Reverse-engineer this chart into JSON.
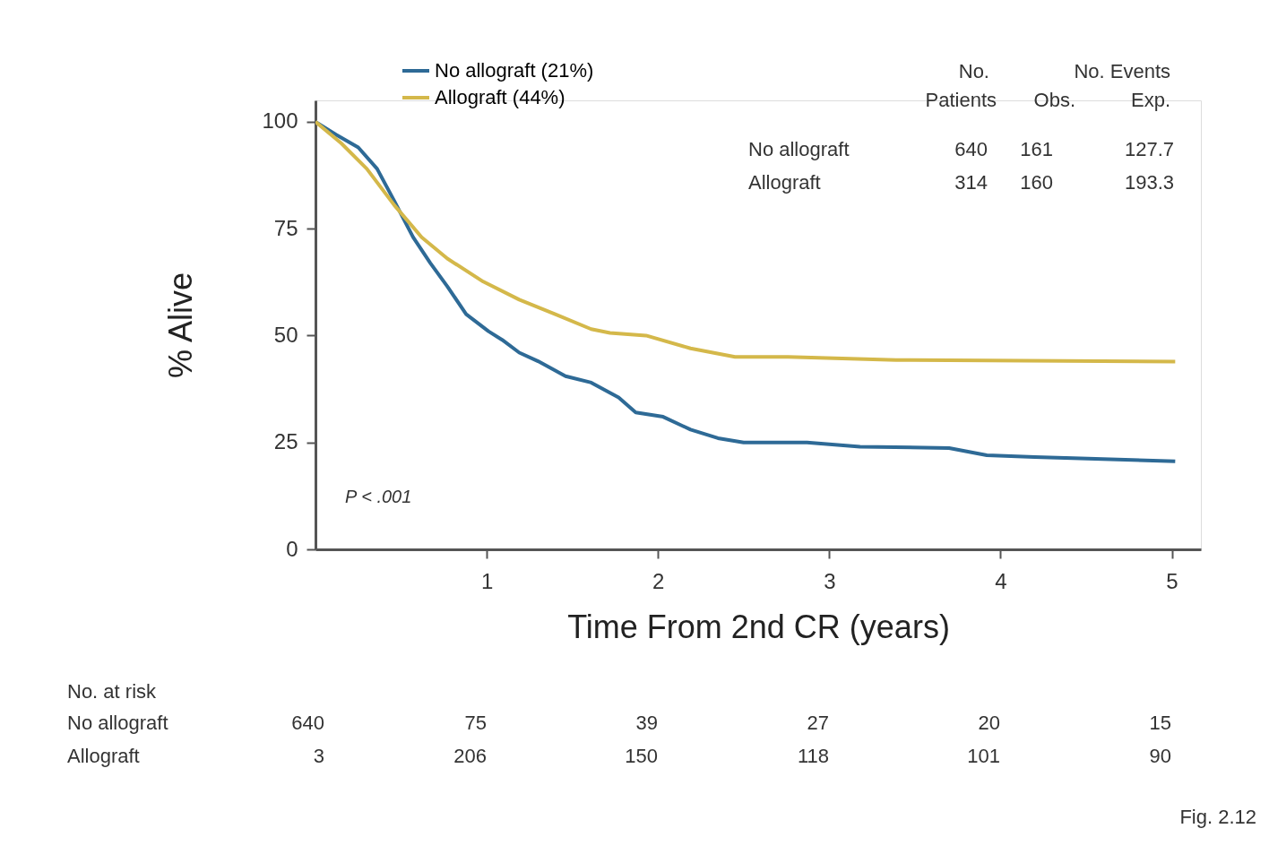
{
  "chart_data": {
    "type": "line",
    "xlabel": "Time From 2nd CR (years)",
    "ylabel": "% Alive",
    "xlim": [
      0,
      5.17
    ],
    "xticks": [
      1,
      2,
      3,
      4,
      5
    ],
    "ylim": [
      0,
      105
    ],
    "yticks": [
      0,
      25,
      50,
      75,
      100
    ],
    "grid": false,
    "legend": "top left",
    "marker": "none",
    "line_style": "solid",
    "series": [
      {
        "name": "No allograft (21%)",
        "color": "#2e6a96",
        "x": [
          0,
          0.12,
          0.25,
          0.36,
          0.46,
          0.57,
          0.67,
          0.77,
          0.88,
          1.01,
          1.09,
          1.19,
          1.3,
          1.46,
          1.61,
          1.77,
          1.87,
          2.03,
          2.19,
          2.35,
          2.5,
          2.87,
          3.18,
          3.7,
          3.92,
          4.2,
          5.02
        ],
        "values": [
          100,
          97,
          94,
          89,
          81.5,
          73,
          67,
          61.5,
          55,
          51,
          49,
          46,
          44,
          40.5,
          39,
          35.5,
          32,
          31,
          28,
          26,
          25,
          25,
          24,
          23.7,
          22,
          21.6,
          20.6
        ]
      },
      {
        "name": "Allograft  (44%)",
        "color": "#d4b84a",
        "x": [
          0,
          0.15,
          0.3,
          0.46,
          0.62,
          0.77,
          0.98,
          1.19,
          1.4,
          1.61,
          1.72,
          1.93,
          2.19,
          2.45,
          2.76,
          3.03,
          3.39,
          5.02
        ],
        "values": [
          100,
          95,
          89,
          80.5,
          73,
          68,
          62.6,
          58.4,
          55,
          51.5,
          50.6,
          50,
          47,
          45,
          45,
          44.7,
          44.3,
          43.9
        ]
      }
    ],
    "annotations": [
      "No.",
      "Patients",
      "No. Events",
      "Obs.",
      "Exp.",
      "No allograft",
      "640",
      "161",
      "127.7",
      "Allograft",
      "314",
      "160",
      "193.3",
      "P < .001",
      "No. at risk",
      "No allograft",
      "640",
      "75",
      "39",
      "27",
      "20",
      "15",
      "Allograft",
      "3",
      "206",
      "150",
      "118",
      "101",
      "90",
      "Fig. 2.12"
    ]
  }
}
